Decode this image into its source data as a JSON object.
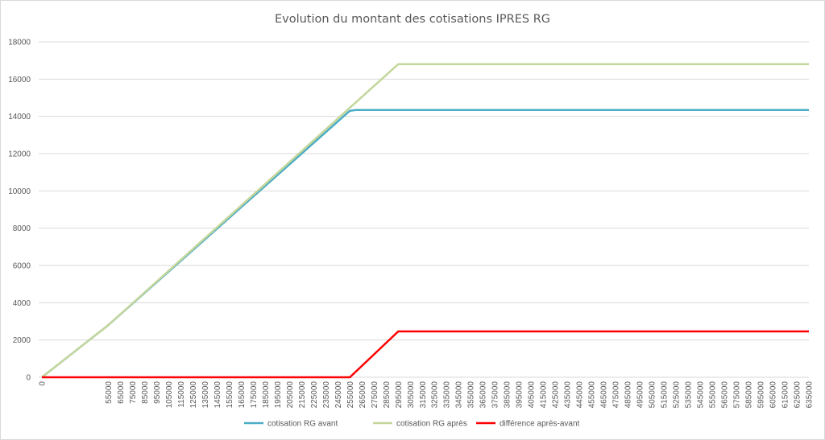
{
  "chart_data": {
    "type": "line",
    "title": "Evolution du montant des cotisations  IPRES RG",
    "xlabel": "",
    "ylabel": "",
    "ylim": [
      0,
      18000
    ],
    "y_ticks": [
      "0",
      "2000",
      "4000",
      "6000",
      "8000",
      "10000",
      "12000",
      "14000",
      "16000",
      "18000"
    ],
    "x_ticks": [
      "0",
      "55000",
      "65000",
      "75000",
      "85000",
      "95000",
      "105000",
      "115000",
      "125000",
      "135000",
      "145000",
      "155000",
      "165000",
      "175000",
      "185000",
      "195000",
      "205000",
      "215000",
      "225000",
      "235000",
      "245000",
      "255000",
      "265000",
      "275000",
      "285000",
      "295000",
      "305000",
      "315000",
      "325000",
      "335000",
      "345000",
      "355000",
      "365000",
      "375000",
      "385000",
      "395000",
      "405000",
      "415000",
      "425000",
      "435000",
      "445000",
      "455000",
      "465000",
      "475000",
      "485000",
      "495000",
      "505000",
      "515000",
      "525000",
      "535000",
      "545000",
      "555000",
      "565000",
      "575000",
      "585000",
      "595000",
      "605000",
      "615000",
      "625000",
      "635000"
    ],
    "grid": true,
    "legend_position": "bottom",
    "series": [
      {
        "name": "cotisation RG avant",
        "color": "#4bacc6",
        "points": [
          [
            0,
            0
          ],
          [
            55000,
            2800
          ],
          [
            255000,
            14300
          ],
          [
            260000,
            14340
          ],
          [
            635000,
            14340
          ]
        ]
      },
      {
        "name": "cotisation RG après",
        "color": "#c3d69b",
        "points": [
          [
            0,
            0
          ],
          [
            55000,
            2800
          ],
          [
            295000,
            16800
          ],
          [
            635000,
            16800
          ]
        ]
      },
      {
        "name": "différence après-avant",
        "color": "#ff0000",
        "points": [
          [
            0,
            0
          ],
          [
            255000,
            0
          ],
          [
            295000,
            2460
          ],
          [
            635000,
            2460
          ]
        ]
      }
    ]
  }
}
